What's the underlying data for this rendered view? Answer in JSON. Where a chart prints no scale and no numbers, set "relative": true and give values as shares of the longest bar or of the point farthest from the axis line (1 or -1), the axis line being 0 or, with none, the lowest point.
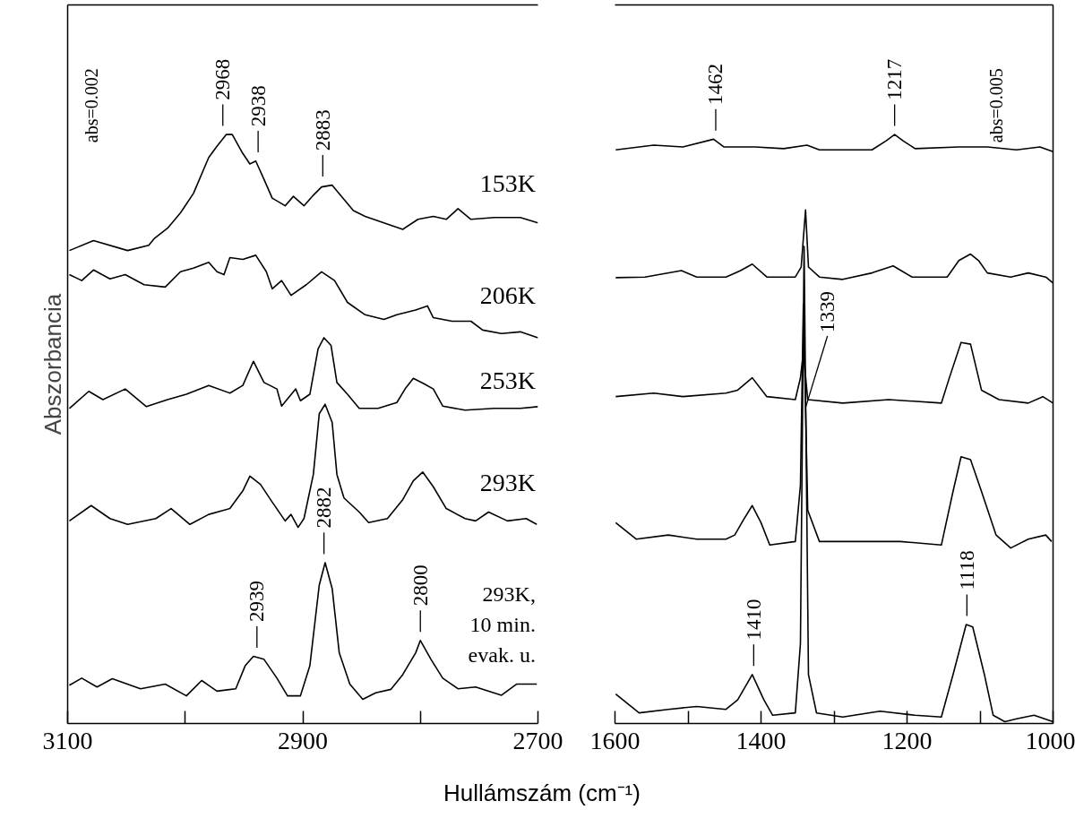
{
  "chart_data": [
    {
      "type": "line",
      "ylabel": "Abszorbancia",
      "xlabel": "Hullámszám (cm⁻¹)",
      "relative": true,
      "tick_labels": "x",
      "xlim": [
        3100,
        2700
      ],
      "xticks": [
        3100,
        {
          "value": 3000,
          "label": null
        },
        2900,
        {
          "value": 2800,
          "label": null
        },
        2700
      ],
      "series": [
        {
          "name": "153K",
          "color": "#000000",
          "x": [
            3098.5,
            3078,
            3049,
            3031,
            3026,
            3015,
            3004,
            2993,
            2980,
            2973,
            2965,
            2960,
            2952,
            2945,
            2940,
            2933,
            2926,
            2915,
            2908,
            2899,
            2891,
            2884,
            2875,
            2868,
            2857,
            2847,
            2831,
            2815,
            2802,
            2789,
            2778,
            2768,
            2757,
            2737,
            2715,
            2700
          ],
          "values": [
            0.803,
            0.82,
            0.803,
            0.812,
            0.824,
            0.841,
            0.867,
            0.9,
            0.961,
            0.98,
            1.0,
            1.0,
            0.971,
            0.95,
            0.955,
            0.924,
            0.892,
            0.879,
            0.895,
            0.879,
            0.897,
            0.911,
            0.914,
            0.897,
            0.871,
            0.861,
            0.85,
            0.839,
            0.856,
            0.861,
            0.856,
            0.874,
            0.856,
            0.859,
            0.859,
            0.85
          ]
        },
        {
          "name": "206K",
          "color": "#000000",
          "x": [
            3098.5,
            3088,
            3078,
            3064,
            3051,
            3035,
            3017,
            3004,
            2993,
            2980,
            2973,
            2967,
            2962,
            2951,
            2940,
            2931,
            2926,
            2918,
            2910,
            2897,
            2884,
            2873,
            2862,
            2847,
            2831,
            2820,
            2804,
            2794,
            2789,
            2773,
            2757,
            2747,
            2731,
            2715,
            2700
          ],
          "values": [
            0.762,
            0.752,
            0.77,
            0.755,
            0.762,
            0.745,
            0.741,
            0.767,
            0.773,
            0.783,
            0.767,
            0.762,
            0.791,
            0.788,
            0.795,
            0.767,
            0.738,
            0.752,
            0.727,
            0.745,
            0.767,
            0.752,
            0.715,
            0.694,
            0.686,
            0.694,
            0.702,
            0.709,
            0.689,
            0.683,
            0.683,
            0.668,
            0.662,
            0.665,
            0.655
          ]
        },
        {
          "name": "253K",
          "color": "#000000",
          "x": [
            3098.5,
            3082,
            3070,
            3051,
            3033,
            3015,
            2999,
            2980,
            2962,
            2951,
            2942,
            2933,
            2922,
            2918,
            2906,
            2902,
            2894,
            2887,
            2882,
            2876,
            2871,
            2862,
            2852,
            2836,
            2820,
            2813,
            2806,
            2797,
            2789,
            2781,
            2762,
            2737,
            2715,
            2700
          ],
          "values": [
            0.535,
            0.564,
            0.55,
            0.568,
            0.538,
            0.55,
            0.559,
            0.574,
            0.561,
            0.574,
            0.615,
            0.579,
            0.568,
            0.539,
            0.568,
            0.548,
            0.559,
            0.636,
            0.655,
            0.642,
            0.579,
            0.559,
            0.535,
            0.535,
            0.545,
            0.568,
            0.586,
            0.577,
            0.568,
            0.539,
            0.532,
            0.535,
            0.535,
            0.538
          ]
        },
        {
          "name": "293K",
          "color": "#000000",
          "x": [
            3098.5,
            3080,
            3064,
            3049,
            3025,
            3012,
            2996,
            2980,
            2962,
            2951,
            2945,
            2936,
            2926,
            2915,
            2910,
            2904,
            2899,
            2891,
            2886,
            2881,
            2875,
            2871,
            2865,
            2852,
            2844,
            2828,
            2815,
            2806,
            2798,
            2789,
            2778,
            2762,
            2753,
            2742,
            2726,
            2710,
            2701
          ],
          "values": [
            0.344,
            0.37,
            0.348,
            0.338,
            0.348,
            0.365,
            0.338,
            0.355,
            0.365,
            0.395,
            0.42,
            0.406,
            0.376,
            0.344,
            0.355,
            0.333,
            0.348,
            0.423,
            0.526,
            0.542,
            0.511,
            0.423,
            0.383,
            0.359,
            0.341,
            0.348,
            0.38,
            0.412,
            0.427,
            0.402,
            0.365,
            0.348,
            0.344,
            0.359,
            0.344,
            0.348,
            0.338
          ]
        },
        {
          "name": "293K, 10 min. evak. u.",
          "color": "#000000",
          "x": [
            3098.5,
            3088,
            3075,
            3062,
            3038,
            3017,
            2999,
            2986,
            2973,
            2957,
            2949,
            2942,
            2933,
            2922,
            2913,
            2902,
            2894,
            2886,
            2881,
            2875,
            2869,
            2860,
            2849,
            2838,
            2825,
            2815,
            2804,
            2800,
            2791,
            2781,
            2768,
            2753,
            2731,
            2718,
            2701
          ],
          "values": [
            0.065,
            0.077,
            0.062,
            0.076,
            0.059,
            0.067,
            0.047,
            0.073,
            0.055,
            0.059,
            0.098,
            0.114,
            0.109,
            0.077,
            0.047,
            0.047,
            0.098,
            0.235,
            0.273,
            0.229,
            0.12,
            0.067,
            0.041,
            0.052,
            0.058,
            0.083,
            0.12,
            0.141,
            0.109,
            0.077,
            0.059,
            0.062,
            0.048,
            0.067,
            0.067
          ]
        }
      ],
      "annotations": [
        "abs=0.002",
        {
          "text": "2968",
          "x": 2968,
          "y": 1.0
        },
        {
          "text": "2938",
          "x": 2938,
          "y": 0.955
        },
        {
          "text": "2883",
          "x": 2883,
          "y": 0.914
        },
        {
          "text": "2882",
          "x": 2882,
          "y": 0.273
        },
        {
          "text": "2939",
          "x": 2939,
          "y": 0.114
        },
        {
          "text": "2800",
          "x": 2800,
          "y": 0.141
        }
      ]
    },
    {
      "type": "line",
      "relative": true,
      "tick_labels": "x",
      "xlim": [
        1600,
        1000
      ],
      "xticks": [
        1600,
        {
          "value": 1500,
          "label": null
        },
        1400,
        {
          "value": 1300,
          "label": null
        },
        1200,
        {
          "value": 1100,
          "label": null
        },
        1000
      ],
      "series": [
        {
          "color": "#000000",
          "x": [
            1599,
            1547,
            1507,
            1465,
            1451,
            1408,
            1369,
            1337,
            1320,
            1248,
            1229,
            1217,
            1205,
            1189,
            1129,
            1090,
            1050,
            1018,
            1000
          ],
          "values": [
            0.974,
            0.982,
            0.979,
            0.992,
            0.979,
            0.979,
            0.976,
            0.982,
            0.974,
            0.974,
            0.989,
            1.0,
            0.989,
            0.976,
            0.979,
            0.979,
            0.974,
            0.979,
            0.971
          ]
        },
        {
          "color": "#000000",
          "x": [
            1599,
            1559,
            1509,
            1488,
            1448,
            1428,
            1412,
            1392,
            1353,
            1345,
            1339,
            1335,
            1320,
            1288,
            1248,
            1219,
            1193,
            1145,
            1129,
            1113,
            1102,
            1090,
            1058,
            1034,
            1010,
            1000
          ],
          "values": [
            0.757,
            0.758,
            0.769,
            0.758,
            0.758,
            0.769,
            0.78,
            0.758,
            0.758,
            0.775,
            0.872,
            0.775,
            0.758,
            0.754,
            0.765,
            0.777,
            0.758,
            0.758,
            0.786,
            0.797,
            0.786,
            0.765,
            0.758,
            0.765,
            0.758,
            0.748
          ]
        },
        {
          "color": "#000000",
          "x": [
            1599,
            1547,
            1507,
            1448,
            1432,
            1412,
            1392,
            1353,
            1346,
            1342,
            1336,
            1288,
            1225,
            1153,
            1142,
            1126,
            1113,
            1098,
            1074,
            1034,
            1014,
            1000
          ],
          "values": [
            0.555,
            0.561,
            0.555,
            0.561,
            0.566,
            0.587,
            0.555,
            0.55,
            0.587,
            0.63,
            0.55,
            0.544,
            0.55,
            0.544,
            0.587,
            0.647,
            0.644,
            0.566,
            0.55,
            0.544,
            0.555,
            0.544
          ]
        },
        {
          "color": "#000000",
          "x": [
            1599,
            1571,
            1527,
            1488,
            1448,
            1436,
            1424,
            1412,
            1400,
            1388,
            1353,
            1346,
            1342,
            1336,
            1320,
            1269,
            1209,
            1153,
            1137,
            1126,
            1113,
            1098,
            1078,
            1058,
            1034,
            1010,
            1002
          ],
          "values": [
            0.341,
            0.313,
            0.32,
            0.313,
            0.313,
            0.32,
            0.346,
            0.37,
            0.341,
            0.303,
            0.309,
            0.405,
            0.711,
            0.362,
            0.309,
            0.309,
            0.309,
            0.303,
            0.394,
            0.453,
            0.448,
            0.394,
            0.32,
            0.298,
            0.313,
            0.32,
            0.309
          ]
        },
        {
          "color": "#000000",
          "x": [
            1599,
            1567,
            1527,
            1488,
            1448,
            1432,
            1412,
            1396,
            1384,
            1353,
            1346,
            1341,
            1335,
            1324,
            1288,
            1237,
            1189,
            1153,
            1137,
            1119,
            1110,
            1094,
            1082,
            1066,
            1050,
            1026,
            1000
          ],
          "values": [
            0.05,
            0.018,
            0.024,
            0.029,
            0.024,
            0.04,
            0.083,
            0.04,
            0.014,
            0.018,
            0.136,
            0.81,
            0.083,
            0.018,
            0.011,
            0.021,
            0.014,
            0.011,
            0.083,
            0.168,
            0.164,
            0.083,
            0.014,
            0.003,
            0.008,
            0.014,
            0.003
          ]
        }
      ],
      "annotations": [
        "abs=0.005",
        {
          "text": "1462",
          "x": 1462,
          "y": 0.992
        },
        {
          "text": "1217",
          "x": 1217,
          "y": 1.0
        },
        {
          "text": "1339",
          "x": 1339,
          "y": 0.536
        },
        {
          "text": "1410",
          "x": 1410,
          "y": 0.083
        },
        {
          "text": "1118",
          "x": 1118,
          "y": 0.168
        }
      ]
    }
  ]
}
